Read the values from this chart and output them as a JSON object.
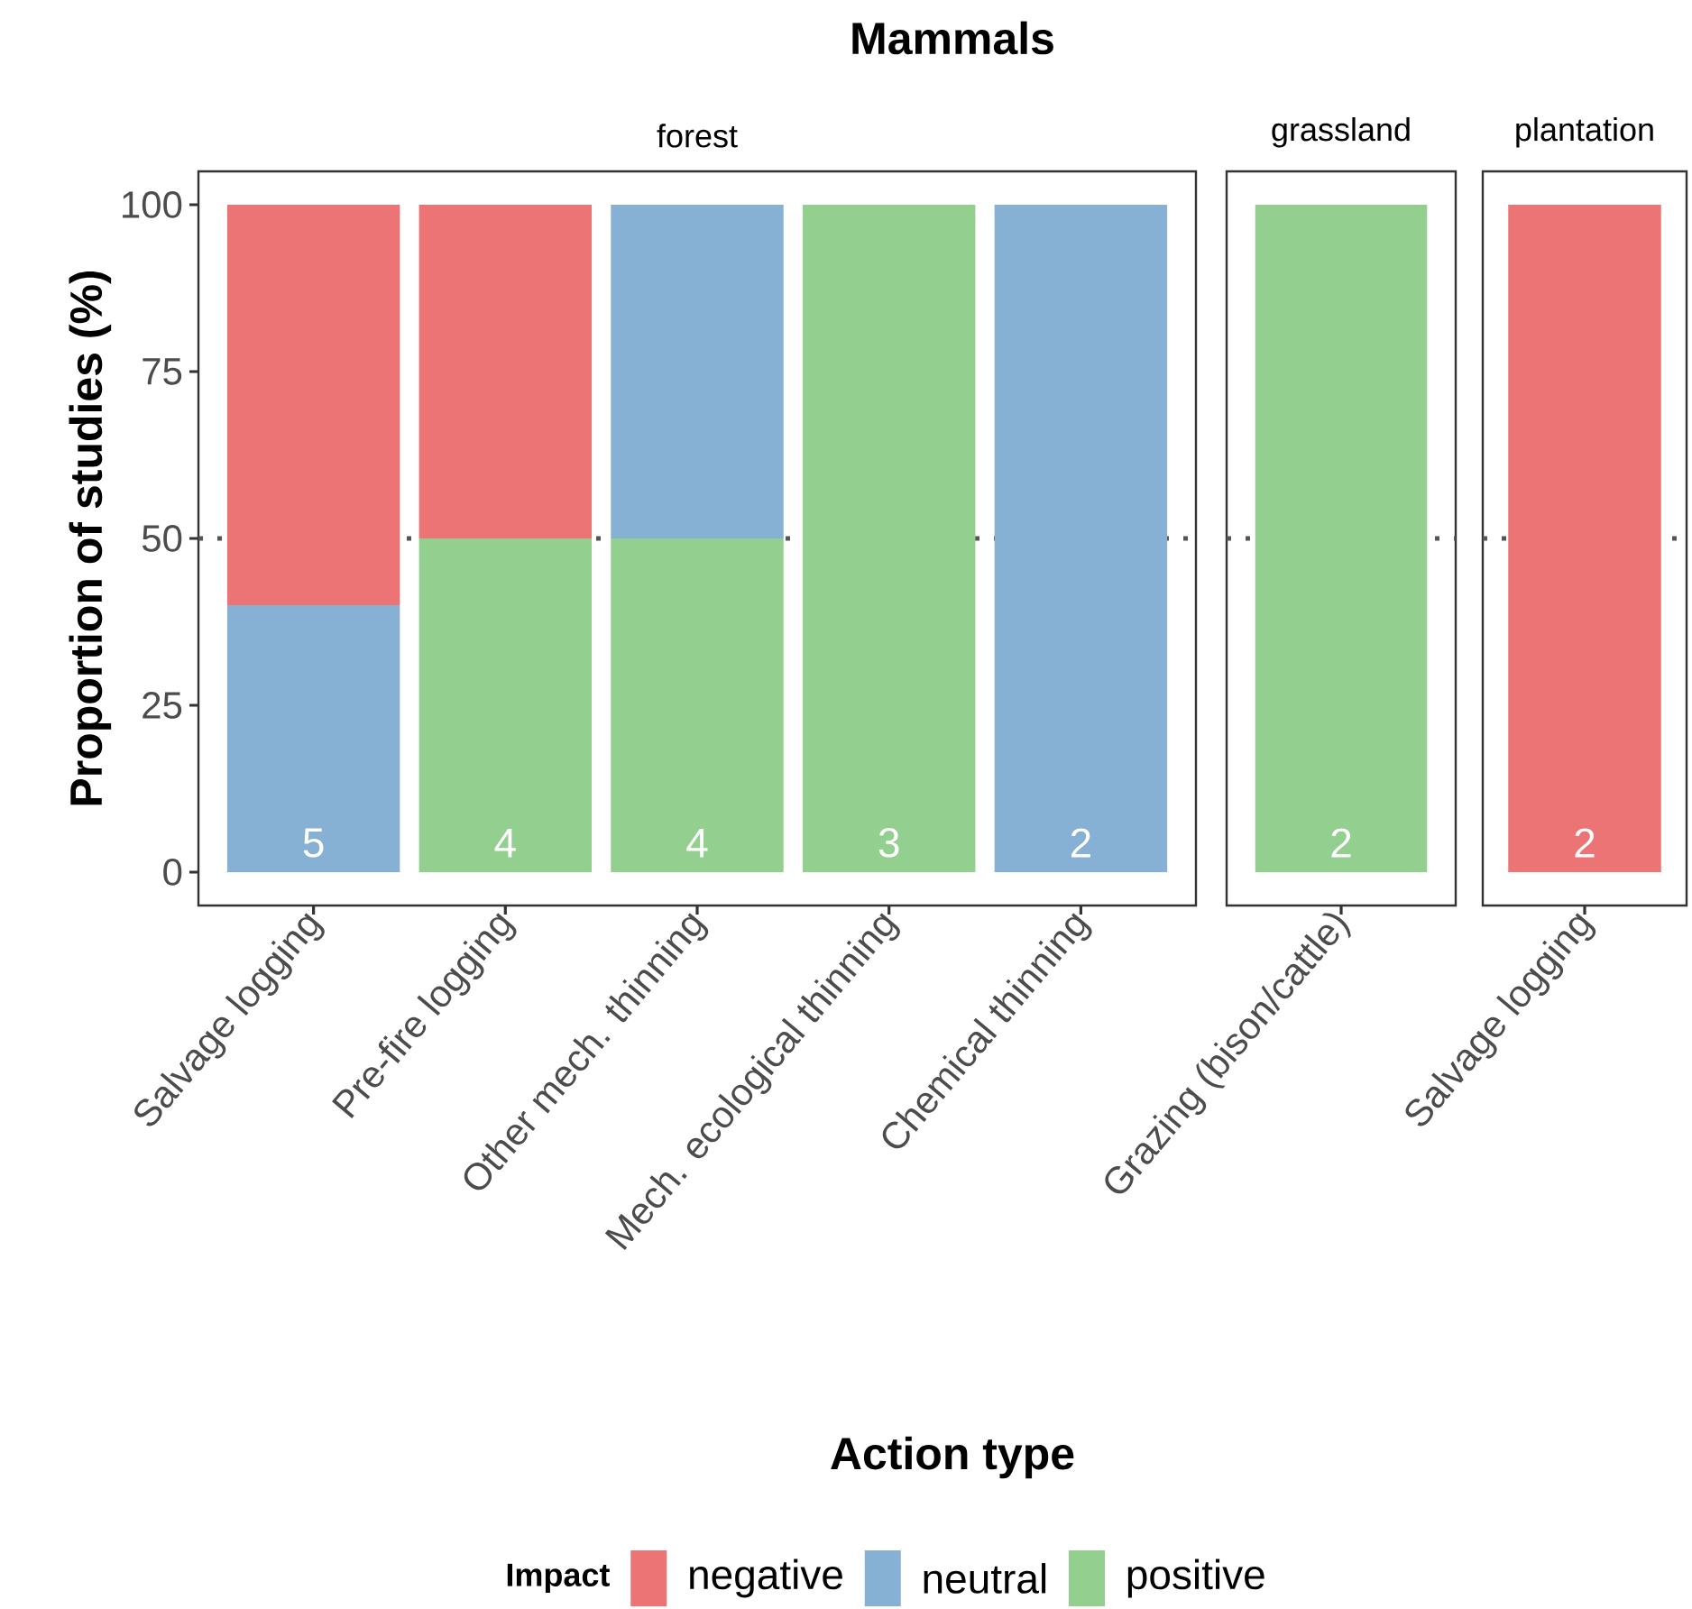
{
  "chart_data": [
    {
      "type": "bar",
      "title": "Mammals",
      "subtitle": "forest",
      "xlabel": "Action type",
      "ylabel": "Proportion of studies (%)",
      "legend_title": "Impact",
      "legend": "bottom",
      "stacked": true,
      "categories": [
        "Salvage logging",
        "Pre-fire logging",
        "Other mech. thinning",
        "Mech. ecological thinning",
        "Chemical thinning"
      ],
      "series": [
        {
          "name": "positive",
          "color": "#93cf8f",
          "values": [
            0,
            50,
            50,
            100,
            0
          ]
        },
        {
          "name": "neutral",
          "color": "#86b0d4",
          "values": [
            40,
            0,
            50,
            0,
            100
          ]
        },
        {
          "name": "negative",
          "color": "#ed7475",
          "values": [
            60,
            50,
            0,
            0,
            0
          ]
        }
      ],
      "annotations": [
        "5",
        "4",
        "4",
        "3",
        "2"
      ],
      "ylim": [
        -5,
        105
      ],
      "yticks": [
        0,
        25,
        50,
        75,
        100
      ],
      "ref_lines": [
        {
          "axis": "y",
          "value": 50,
          "line_style": "dotted",
          "color": "#555555"
        }
      ]
    },
    {
      "type": "bar",
      "subtitle": "grassland",
      "stacked": true,
      "tick_labels": "x",
      "categories": [
        "Grazing (bison/cattle)"
      ],
      "series": [
        {
          "color": "#93cf8f",
          "values": [
            100
          ]
        }
      ],
      "annotations": [
        "2"
      ],
      "ylim": [
        -5,
        105
      ],
      "ref_lines": [
        {
          "axis": "y",
          "value": 50,
          "line_style": "dotted",
          "color": "#555555"
        }
      ]
    },
    {
      "type": "bar",
      "subtitle": "plantation",
      "stacked": true,
      "tick_labels": "x",
      "categories": [
        "Salvage logging"
      ],
      "series": [
        {
          "color": "#ed7475",
          "values": [
            100
          ]
        }
      ],
      "annotations": [
        "2"
      ],
      "ylim": [
        -5,
        105
      ],
      "ref_lines": [
        {
          "axis": "y",
          "value": 50,
          "line_style": "dotted",
          "color": "#555555"
        }
      ]
    }
  ]
}
